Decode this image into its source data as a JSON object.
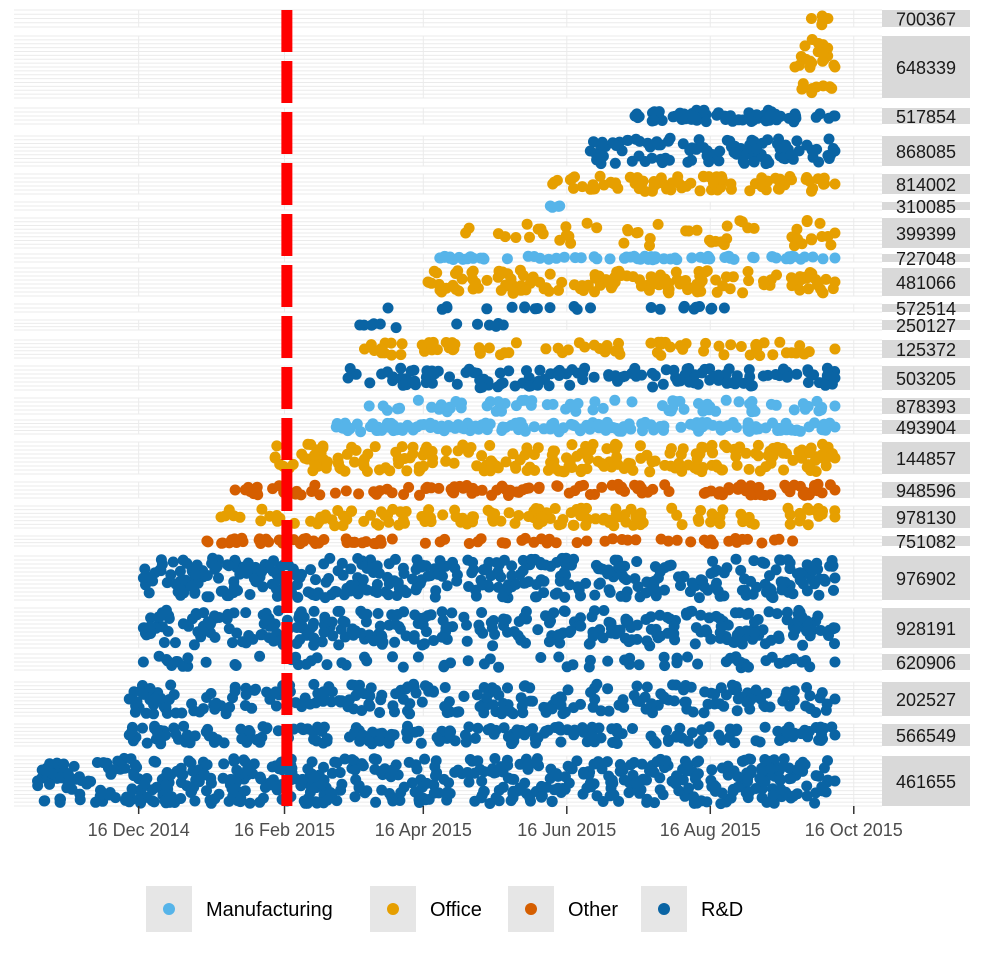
{
  "chart_data": {
    "type": "scatter",
    "title": "",
    "xlabel": "",
    "ylabel": "",
    "x_range": [
      "2014-10-24",
      "2015-10-28"
    ],
    "x_ticks": [
      {
        "date": "2014-12-16",
        "label": "16 Dec 2014"
      },
      {
        "date": "2015-02-16",
        "label": "16 Feb 2015"
      },
      {
        "date": "2015-04-16",
        "label": "16 Apr 2015"
      },
      {
        "date": "2015-06-16",
        "label": "16 Jun 2015"
      },
      {
        "date": "2015-08-16",
        "label": "16 Aug 2015"
      },
      {
        "date": "2015-10-16",
        "label": "16 Oct 2015"
      }
    ],
    "reference_line": {
      "date": "2015-02-17",
      "color": "#FF0000",
      "style": "dashed"
    },
    "series": [
      {
        "name": "Manufacturing",
        "color": "#56B4E9"
      },
      {
        "name": "Office",
        "color": "#E69F00"
      },
      {
        "name": "Other",
        "color": "#D55E00"
      },
      {
        "name": "R&D",
        "color": "#0A64A4"
      }
    ],
    "panels": [
      {
        "id": "700367",
        "category": "Office",
        "start": "2015-09-28",
        "end": "2015-10-05",
        "density": 0.55
      },
      {
        "id": "648339",
        "category": "Office",
        "start": "2015-09-21",
        "end": "2015-10-08",
        "density": 0.85
      },
      {
        "id": "517854",
        "category": "R&D",
        "start": "2015-07-15",
        "end": "2015-10-08",
        "density": 0.95
      },
      {
        "id": "868085",
        "category": "R&D",
        "start": "2015-06-26",
        "end": "2015-10-08",
        "density": 1.0
      },
      {
        "id": "814002",
        "category": "Office",
        "start": "2015-06-10",
        "end": "2015-10-08",
        "density": 0.85
      },
      {
        "id": "310085",
        "category": "Manufacturing",
        "start": "2015-06-09",
        "end": "2015-06-13",
        "density": 0.5
      },
      {
        "id": "399399",
        "category": "Office",
        "start": "2015-05-04",
        "end": "2015-10-08",
        "density": 0.35
      },
      {
        "id": "727048",
        "category": "Manufacturing",
        "start": "2015-04-23",
        "end": "2015-10-08",
        "density": 0.55
      },
      {
        "id": "481066",
        "category": "Office",
        "start": "2015-04-18",
        "end": "2015-10-08",
        "density": 0.95
      },
      {
        "id": "572514",
        "category": "R&D",
        "start": "2015-04-01",
        "end": "2015-08-22",
        "density": 0.2
      },
      {
        "id": "250127",
        "category": "R&D",
        "start": "2015-03-20",
        "end": "2015-05-20",
        "density": 0.2
      },
      {
        "id": "125372",
        "category": "Office",
        "start": "2015-03-22",
        "end": "2015-10-08",
        "density": 0.5
      },
      {
        "id": "503205",
        "category": "R&D",
        "start": "2015-03-15",
        "end": "2015-10-08",
        "density": 0.85
      },
      {
        "id": "878393",
        "category": "Manufacturing",
        "start": "2015-03-24",
        "end": "2015-10-08",
        "density": 0.45
      },
      {
        "id": "493904",
        "category": "Manufacturing",
        "start": "2015-03-10",
        "end": "2015-10-08",
        "density": 1.0
      },
      {
        "id": "144857",
        "category": "Office",
        "start": "2015-02-12",
        "end": "2015-10-08",
        "density": 0.9
      },
      {
        "id": "948596",
        "category": "Other",
        "start": "2015-01-26",
        "end": "2015-10-08",
        "density": 0.6
      },
      {
        "id": "978130",
        "category": "Office",
        "start": "2015-01-20",
        "end": "2015-10-08",
        "density": 0.7
      },
      {
        "id": "751082",
        "category": "Other",
        "start": "2015-01-14",
        "end": "2015-09-20",
        "density": 0.4
      },
      {
        "id": "976902",
        "category": "R&D",
        "start": "2014-12-18",
        "end": "2015-10-08",
        "density": 0.95
      },
      {
        "id": "928191",
        "category": "R&D",
        "start": "2014-12-18",
        "end": "2015-10-08",
        "density": 0.85
      },
      {
        "id": "620906",
        "category": "R&D",
        "start": "2014-12-18",
        "end": "2015-10-08",
        "density": 0.3
      },
      {
        "id": "202527",
        "category": "R&D",
        "start": "2014-12-12",
        "end": "2015-10-08",
        "density": 0.75
      },
      {
        "id": "566549",
        "category": "R&D",
        "start": "2014-12-12",
        "end": "2015-10-08",
        "density": 0.85
      },
      {
        "id": "461655",
        "category": "R&D",
        "start": "2014-11-03",
        "end": "2015-10-08",
        "density": 1.0
      }
    ]
  }
}
